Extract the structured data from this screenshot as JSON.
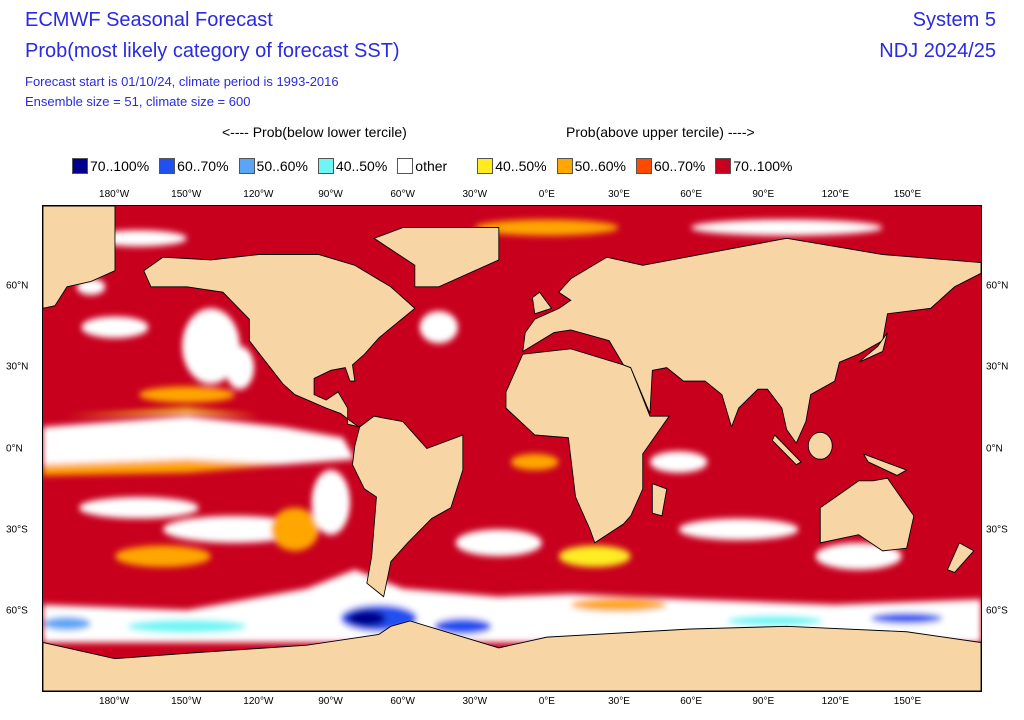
{
  "header": {
    "title": "ECMWF Seasonal Forecast",
    "subtitle": "Prob(most likely category of forecast SST)",
    "info1": "Forecast start is 01/10/24, climate period is 1993-2016",
    "info2": "Ensemble size = 51, climate size = 600",
    "system": "System 5",
    "season": "NDJ 2024/25"
  },
  "legend": {
    "below_heading": "<---- Prob(below lower tercile)",
    "above_heading": "Prob(above upper tercile) ---->",
    "items": [
      {
        "label": "70..100%",
        "color": "#00008c"
      },
      {
        "label": "60..70%",
        "color": "#2050f0"
      },
      {
        "label": "50..60%",
        "color": "#5aa5f5"
      },
      {
        "label": "40..50%",
        "color": "#70f5f5"
      },
      {
        "label": "other",
        "color": "#ffffff"
      },
      {
        "label": "40..50%",
        "color": "#ffec20"
      },
      {
        "label": "50..60%",
        "color": "#ffa600"
      },
      {
        "label": "60..70%",
        "color": "#ff4800"
      },
      {
        "label": "70..100%",
        "color": "#c8001e"
      }
    ]
  },
  "map": {
    "land_color": "#f8d5a5",
    "lon_ticks": [
      {
        "label": "180°W",
        "lon": -180
      },
      {
        "label": "150°W",
        "lon": -150
      },
      {
        "label": "120°W",
        "lon": -120
      },
      {
        "label": "90°W",
        "lon": -90
      },
      {
        "label": "60°W",
        "lon": -60
      },
      {
        "label": "30°W",
        "lon": -30
      },
      {
        "label": "0°E",
        "lon": 0
      },
      {
        "label": "30°E",
        "lon": 30
      },
      {
        "label": "60°E",
        "lon": 60
      },
      {
        "label": "90°E",
        "lon": 90
      },
      {
        "label": "120°E",
        "lon": 120
      },
      {
        "label": "150°E",
        "lon": 150
      }
    ],
    "lat_ticks": [
      {
        "label": "60°N",
        "lat": 60
      },
      {
        "label": "30°N",
        "lat": 30
      },
      {
        "label": "0°N",
        "lat": 0
      },
      {
        "label": "30°S",
        "lat": -30
      },
      {
        "label": "60°S",
        "lat": -60
      }
    ]
  }
}
